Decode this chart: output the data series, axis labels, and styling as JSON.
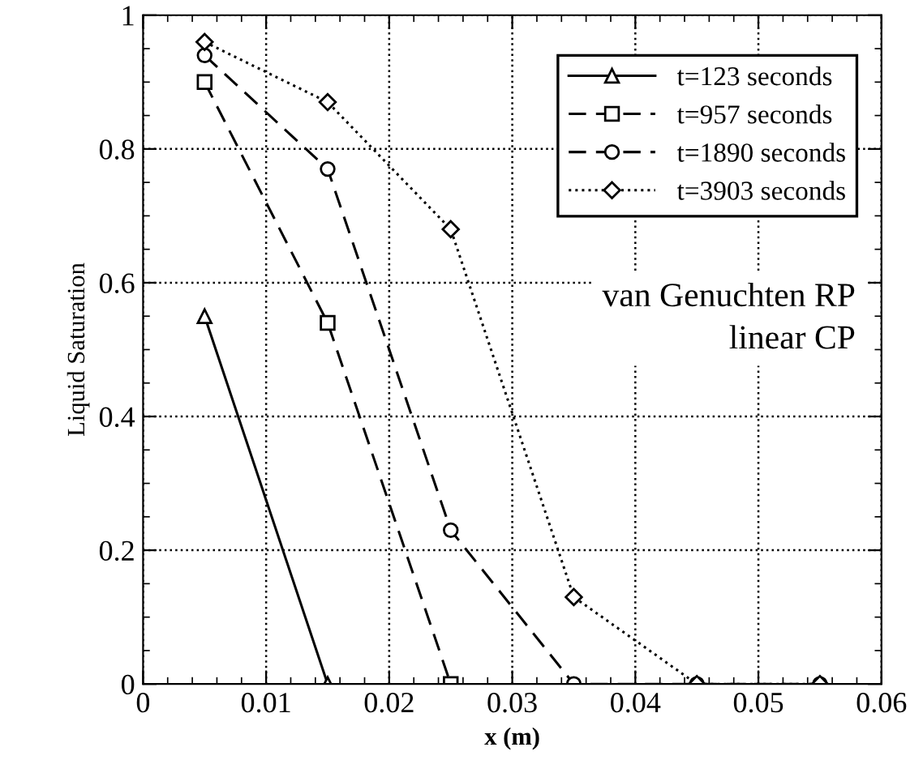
{
  "chart_data": {
    "type": "line",
    "xlabel": "x (m)",
    "ylabel": "Liquid Saturation",
    "xlim": [
      0,
      0.06
    ],
    "xticks": [
      0,
      0.01,
      0.02,
      0.03,
      0.04,
      0.05,
      0.06
    ],
    "ylim": [
      0,
      1
    ],
    "yticks": [
      0,
      0.2,
      0.4,
      0.6,
      0.8,
      1
    ],
    "grid": true,
    "legend": "top right",
    "annotations": [
      "van Genuchten RP\nlinear CP"
    ],
    "series": [
      {
        "name": "t=123 seconds",
        "color": "#000000",
        "marker": "triangle",
        "line_style": "solid",
        "x": [
          0.005,
          0.015
        ],
        "values": [
          0.55,
          0
        ]
      },
      {
        "name": "t=957 seconds",
        "color": "#000000",
        "marker": "square",
        "line_style": "dashed",
        "x": [
          0.005,
          0.015,
          0.025
        ],
        "values": [
          0.9,
          0.54,
          0
        ]
      },
      {
        "name": "t=1890 seconds",
        "color": "#000000",
        "marker": "circle",
        "line_style": "dashed",
        "x": [
          0.005,
          0.015,
          0.025,
          0.035,
          0.045,
          0.055
        ],
        "values": [
          0.94,
          0.77,
          0.23,
          0,
          0,
          0
        ]
      },
      {
        "name": "t=3903 seconds",
        "color": "#000000",
        "marker": "diamond",
        "line_style": "dotted",
        "x": [
          0.005,
          0.015,
          0.025,
          0.035,
          0.045,
          0.055
        ],
        "values": [
          0.96,
          0.87,
          0.68,
          0.13,
          0,
          0
        ]
      }
    ]
  }
}
